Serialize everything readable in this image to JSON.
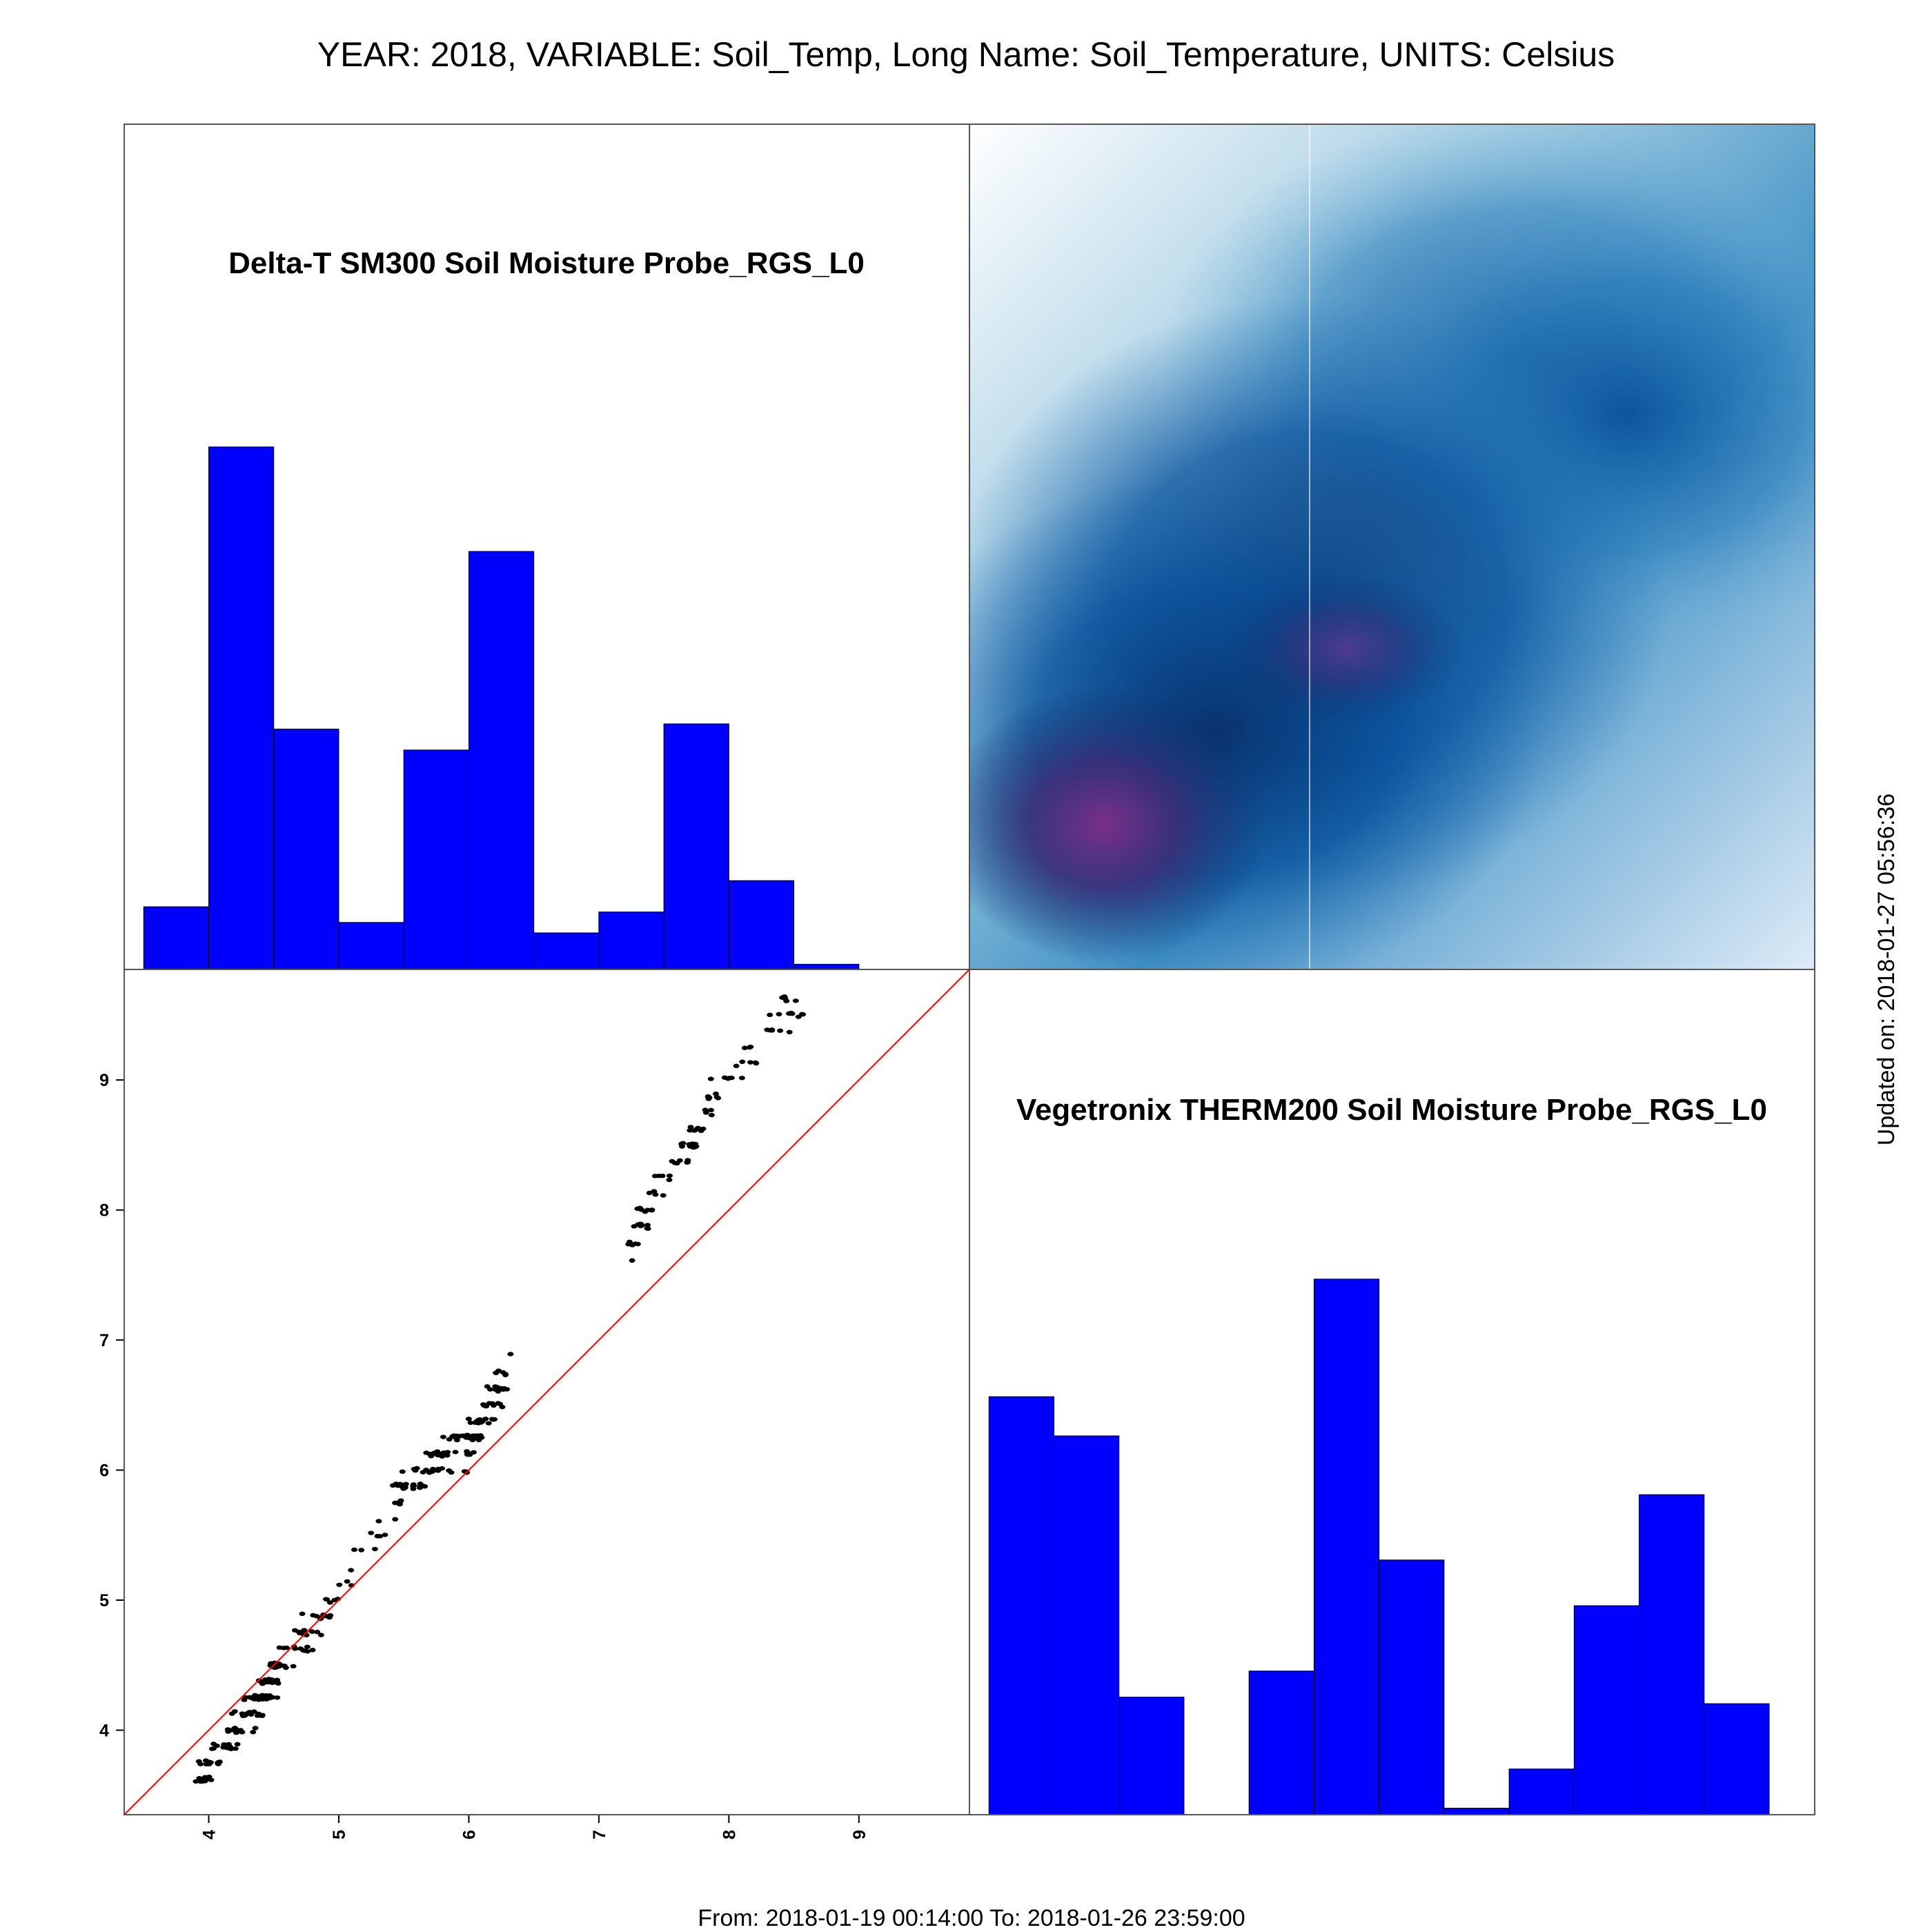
{
  "title": "YEAR: 2018, VARIABLE: Soil_Temp, Long Name: Soil_Temperature, UNITS: Celsius",
  "footer": "From: 2018-01-19 00:14:00 To: 2018-01-26 23:59:00",
  "updated": "Updated on: 2018-01-27 05:56:36",
  "colors": {
    "bar": "#0000FF",
    "point": "#000000",
    "ref_line": "#FF0000",
    "frame": "#555555"
  },
  "chart_data": [
    {
      "type": "histogram",
      "panel": "top-left",
      "title": "Delta-T SM300 Soil Moisture Probe_RGS_L0",
      "bins": [
        3.5,
        4.0,
        4.5,
        5.0,
        5.5,
        6.0,
        6.5,
        7.0,
        7.5,
        8.0,
        8.5,
        9.0
      ],
      "counts": [
        12,
        100,
        46,
        9,
        42,
        80,
        7,
        11,
        47,
        17,
        1
      ],
      "ylim": [
        0,
        110
      ]
    },
    {
      "type": "heatmap",
      "panel": "top-right",
      "description": "2D kernel density of Vegetronix vs Delta-T soil temperature",
      "color_scale": [
        "#ffffff",
        "#6baed6",
        "#08519c",
        "#08306b",
        "#7b2f8a"
      ],
      "peaks": [
        {
          "x": 4.2,
          "y": 3.8,
          "intensity": 1.0
        },
        {
          "x": 5.0,
          "y": 4.5,
          "intensity": 0.75
        },
        {
          "x": 6.3,
          "y": 6.0,
          "intensity": 0.8
        },
        {
          "x": 7.0,
          "y": 8.5,
          "intensity": 0.55
        },
        {
          "x": 8.2,
          "y": 9.2,
          "intensity": 0.45
        }
      ]
    },
    {
      "type": "scatter",
      "panel": "bottom-left",
      "xlabel": "Delta-T SM300 Soil Moisture Probe_RGS_L0",
      "ylabel": "Vegetronix THERM200 Soil Moisture Probe_RGS_L0",
      "xlim": [
        3.35,
        9.85
      ],
      "ylim": [
        3.35,
        9.85
      ],
      "xticks": [
        4,
        5,
        6,
        7,
        8,
        9
      ],
      "yticks": [
        4,
        5,
        6,
        7,
        8,
        9
      ],
      "reference_line": "y = x",
      "segments": [
        {
          "x0": 3.93,
          "x1": 4.55,
          "y0": 3.62,
          "y1": 4.45,
          "n": 140
        },
        {
          "x0": 4.45,
          "x1": 4.92,
          "y0": 4.45,
          "y1": 4.88,
          "n": 45
        },
        {
          "x0": 4.88,
          "x1": 5.5,
          "y0": 4.9,
          "y1": 5.85,
          "n": 22
        },
        {
          "x0": 5.45,
          "x1": 6.1,
          "y0": 5.82,
          "y1": 6.3,
          "n": 90
        },
        {
          "x0": 5.95,
          "x1": 6.3,
          "y0": 6.05,
          "y1": 6.78,
          "n": 55
        },
        {
          "x0": 7.2,
          "x1": 7.85,
          "y0": 7.68,
          "y1": 8.8,
          "n": 60
        },
        {
          "x0": 7.8,
          "x1": 8.55,
          "y0": 8.75,
          "y1": 9.65,
          "n": 40
        }
      ]
    },
    {
      "type": "histogram",
      "panel": "bottom-right",
      "title": "Vegetronix THERM200 Soil Moisture Probe_RGS_L0",
      "bins": [
        3.5,
        4.0,
        4.5,
        5.0,
        5.5,
        6.0,
        6.5,
        7.0,
        7.5,
        8.0,
        8.5,
        9.0,
        9.5,
        10.0
      ],
      "counts": [
        64,
        58,
        18,
        0,
        22,
        82,
        39,
        1,
        7,
        32,
        49,
        17,
        0
      ],
      "ylim": [
        0,
        88
      ]
    }
  ]
}
